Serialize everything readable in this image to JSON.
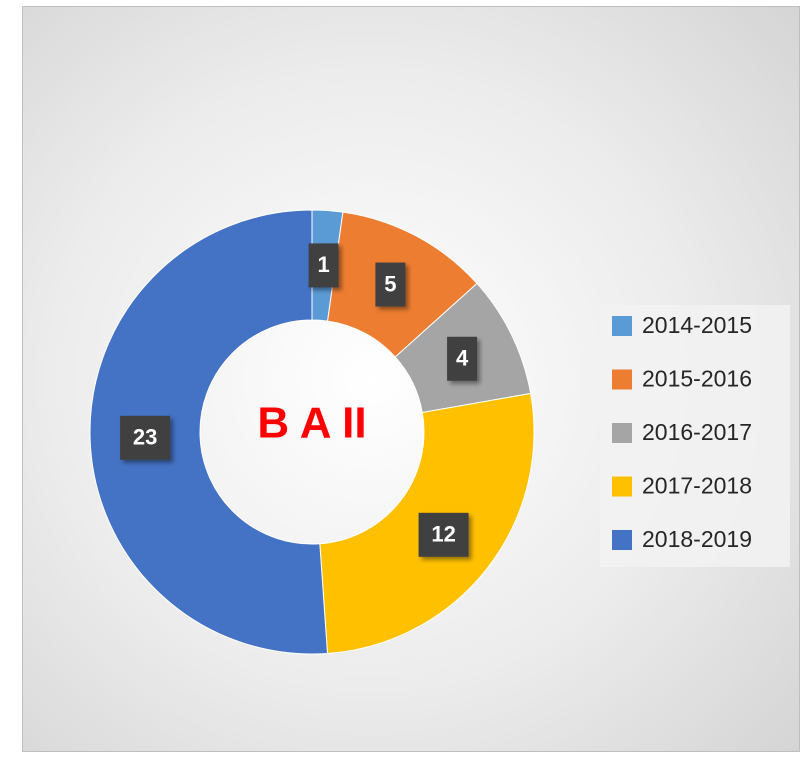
{
  "chart_data": {
    "type": "donut",
    "title": "B A II",
    "categories": [
      "2014-2015",
      "2015-2016",
      "2016-2017",
      "2017-2018",
      "2018-2019"
    ],
    "values": [
      1,
      5,
      4,
      12,
      23
    ],
    "colors": [
      "#5b9bd5",
      "#ed7d31",
      "#a5a5a5",
      "#ffc000",
      "#4472c4"
    ],
    "legend": "right"
  }
}
